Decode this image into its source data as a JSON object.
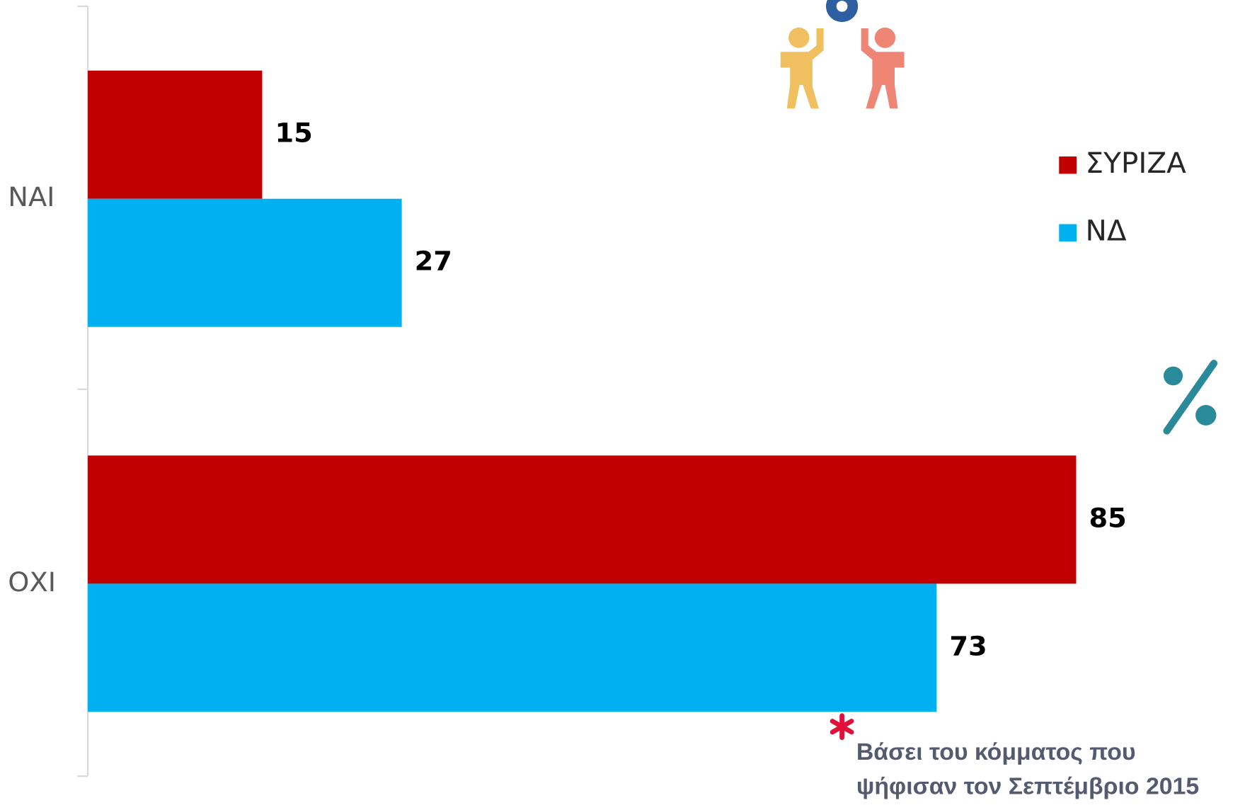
{
  "chart_data": {
    "type": "barh",
    "categories": [
      "ΝΑΙ",
      "ΟΧΙ"
    ],
    "series": [
      {
        "name": "ΣΥΡΙΖΑ",
        "color": "#c00000",
        "values": [
          15,
          85
        ]
      },
      {
        "name": "ΝΔ",
        "color": "#00b0f0",
        "values": [
          27,
          73
        ]
      }
    ],
    "xlim": [
      0,
      100
    ],
    "legend": "right",
    "annotation": [
      "Βάσει του κόμματος που",
      "ψήφισαν τον Σεπτέμβριο 2015"
    ]
  }
}
